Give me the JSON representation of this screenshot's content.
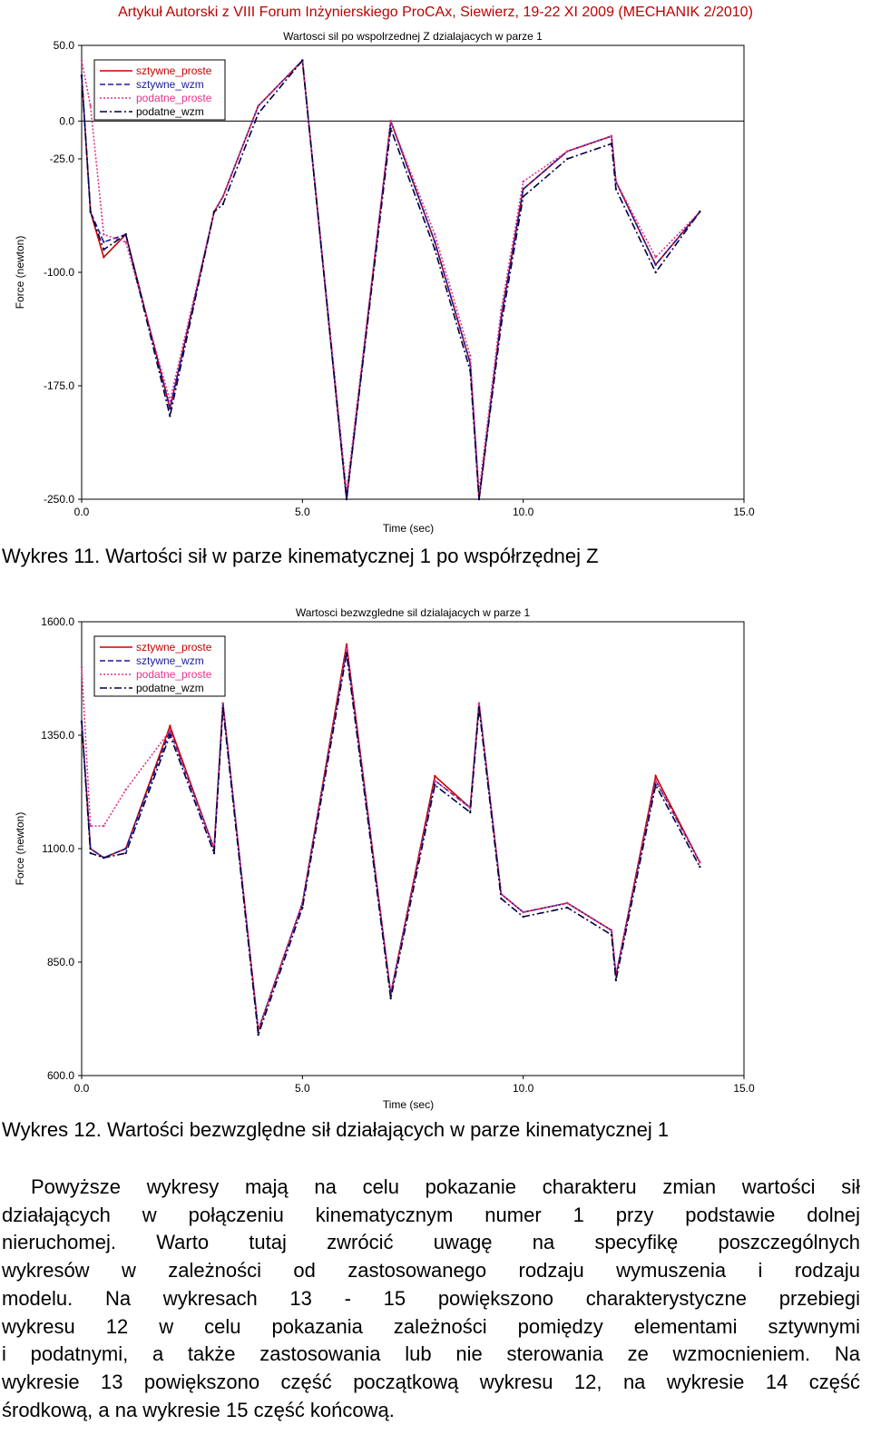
{
  "header": "Artykuł Autorski z VIII Forum Inżynierskiego ProCAx, Siewierz, 19-22 XI 2009 (MECHANIK 2/2010)",
  "figures": [
    {
      "caption": "Wykres 11. Wartości sił w parze kinematycznej 1 po współrzędnej Z",
      "title": "Wartosci sil po wspolrzednej Z dzialajacych w parze 1",
      "xlabel": "Time (sec)",
      "ylabel": "Force (newton)",
      "ytick_labels": [
        "50.0",
        "0.0",
        "-25.0",
        "-100.0",
        "-175.0",
        "-250.0"
      ],
      "xtick_labels": [
        "0.0",
        "5.0",
        "10.0",
        "15.0"
      ]
    },
    {
      "caption": "Wykres 12. Wartości bezwzględne sił działających w parze kinematycznej 1",
      "title": "Wartosci bezwzgledne sil dzialajacych w parze 1",
      "xlabel": "Time (sec)",
      "ylabel": "Force (newton)",
      "ytick_labels": [
        "1600.0",
        "1350.0",
        "1100.0",
        "850.0",
        "600.0"
      ],
      "xtick_labels": [
        "0.0",
        "5.0",
        "10.0",
        "15.0"
      ]
    }
  ],
  "paragraph_lines": [
    "Powyższe wykresy mają na celu pokazanie charakteru zmian wartości sił",
    "działających w połączeniu kinematycznym numer 1 przy podstawie dolnej",
    "nieruchomej. Warto tutaj zwrócić uwagę na specyfikę poszczególnych",
    "wykresów w zależności od zastosowanego rodzaju wymuszenia i rodzaju",
    "modelu. Na wykresach 13 - 15 powiększono charakterystyczne przebiegi",
    "wykresu 12 w celu pokazania  zależności pomiędzy elementami sztywnymi",
    "i podatnymi, a także zastosowania lub nie sterowania ze wzmocnieniem. Na",
    "wykresie 13 powiększono część początkową wykresu 12, na wykresie 14 część",
    "środkową, a na wykresie 15 część końcową."
  ],
  "chart_data": [
    {
      "type": "line",
      "title": "Wartosci sil po wspolrzednej Z dzialajacych w parze 1",
      "xlabel": "Time (sec)",
      "ylabel": "Force (newton)",
      "xlim": [
        0,
        15
      ],
      "ylim": [
        -250,
        50
      ],
      "yticks": [
        50,
        0,
        -25,
        -100,
        -175,
        -250
      ],
      "xticks": [
        0,
        5,
        10,
        15
      ],
      "grid": false,
      "legend_position": "top-left",
      "x": [
        0,
        0.2,
        0.5,
        1.0,
        2.0,
        3.0,
        3.2,
        4.0,
        5.0,
        6.0,
        7.0,
        8.0,
        8.8,
        9.0,
        9.5,
        10.0,
        11.0,
        12.0,
        12.1,
        13.0,
        14.0
      ],
      "series": [
        {
          "name": "sztywne_proste",
          "color": "#cc0000",
          "dash": "solid",
          "values": [
            30,
            -60,
            -90,
            -75,
            -190,
            -60,
            -50,
            10,
            40,
            -250,
            0,
            -80,
            -160,
            -250,
            -130,
            -45,
            -20,
            -10,
            -40,
            -95,
            -60
          ]
        },
        {
          "name": "sztywne_wzm",
          "color": "#1a1aa0",
          "dash": "dashed",
          "values": [
            30,
            -60,
            -80,
            -75,
            -190,
            -60,
            -50,
            10,
            40,
            -250,
            0,
            -80,
            -160,
            -250,
            -130,
            -45,
            -20,
            -10,
            -40,
            -95,
            -60
          ]
        },
        {
          "name": "podatne_proste",
          "color": "#e0338a",
          "dash": "dotted",
          "values": [
            40,
            10,
            -75,
            -80,
            -185,
            -60,
            -50,
            10,
            40,
            -245,
            0,
            -75,
            -155,
            -245,
            -125,
            -40,
            -20,
            -10,
            -40,
            -90,
            -60
          ]
        },
        {
          "name": "podatne_wzm",
          "color": "#000044",
          "dash": "dashdot",
          "values": [
            30,
            -60,
            -85,
            -75,
            -195,
            -60,
            -55,
            5,
            40,
            -250,
            -5,
            -85,
            -165,
            -250,
            -135,
            -50,
            -25,
            -15,
            -45,
            -100,
            -60
          ]
        }
      ]
    },
    {
      "type": "line",
      "title": "Wartosci bezwzgledne sil dzialajacych w parze 1",
      "xlabel": "Time (sec)",
      "ylabel": "Force (newton)",
      "xlim": [
        0,
        15
      ],
      "ylim": [
        600,
        1600
      ],
      "yticks": [
        1600,
        1350,
        1100,
        850,
        600
      ],
      "xticks": [
        0,
        5,
        10,
        15
      ],
      "grid": false,
      "legend_position": "top-left",
      "x": [
        0,
        0.2,
        0.5,
        1.0,
        2.0,
        3.0,
        3.2,
        4.0,
        5.0,
        6.0,
        7.0,
        8.0,
        8.8,
        9.0,
        9.5,
        10.0,
        11.0,
        12.0,
        12.1,
        13.0,
        14.0
      ],
      "series": [
        {
          "name": "sztywne_proste",
          "color": "#cc0000",
          "dash": "solid",
          "values": [
            1380,
            1100,
            1080,
            1100,
            1370,
            1100,
            1420,
            700,
            980,
            1550,
            780,
            1260,
            1190,
            1420,
            1000,
            960,
            980,
            920,
            820,
            1260,
            1070
          ]
        },
        {
          "name": "sztywne_wzm",
          "color": "#1a1aa0",
          "dash": "dashed",
          "values": [
            1380,
            1100,
            1080,
            1100,
            1360,
            1100,
            1420,
            700,
            980,
            1540,
            780,
            1250,
            1190,
            1420,
            1000,
            960,
            980,
            920,
            820,
            1250,
            1070
          ]
        },
        {
          "name": "podatne_proste",
          "color": "#e0338a",
          "dash": "dotted",
          "values": [
            1500,
            1150,
            1150,
            1230,
            1360,
            1100,
            1420,
            700,
            980,
            1540,
            780,
            1250,
            1190,
            1420,
            1000,
            960,
            980,
            920,
            820,
            1250,
            1070
          ]
        },
        {
          "name": "podatne_wzm",
          "color": "#000044",
          "dash": "dashdot",
          "values": [
            1380,
            1090,
            1080,
            1090,
            1350,
            1090,
            1410,
            690,
            970,
            1530,
            770,
            1240,
            1180,
            1410,
            990,
            950,
            970,
            910,
            810,
            1240,
            1060
          ]
        }
      ]
    }
  ]
}
